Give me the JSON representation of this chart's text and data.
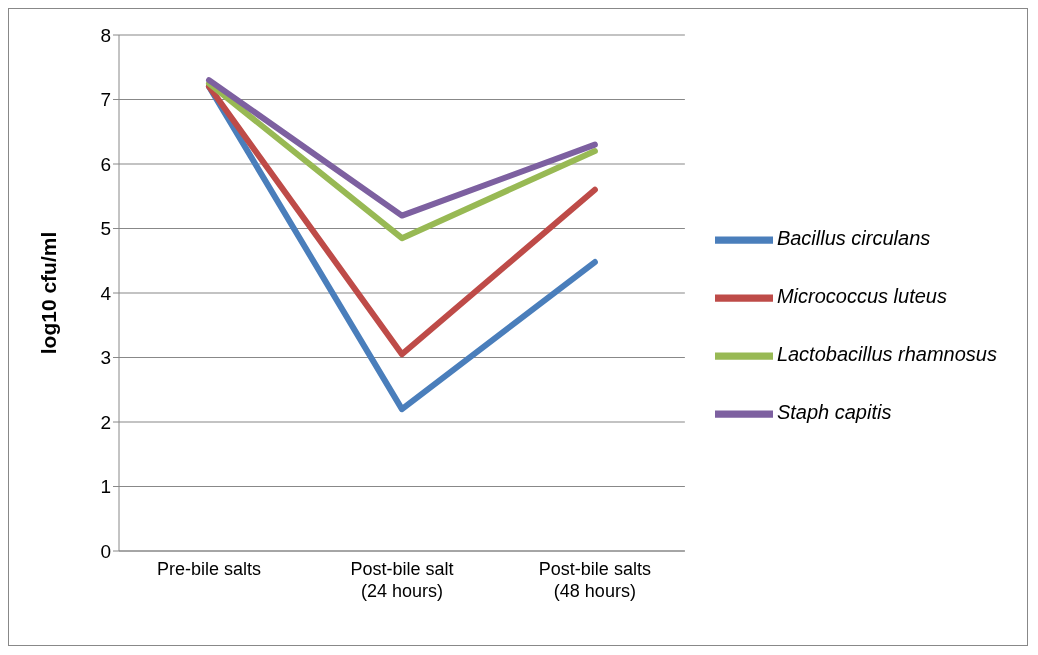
{
  "chart_data": {
    "type": "line",
    "ylabel": "log10 cfu/ml",
    "categories": [
      "Pre-bile salts",
      "Post-bile salt (24 hours)",
      "Post-bile salts (48 hours)"
    ],
    "series": [
      {
        "name": "Bacillus circulans",
        "color": "#4a7ebb",
        "values": [
          7.2,
          2.2,
          4.48
        ]
      },
      {
        "name": "Micrococcus luteus",
        "color": "#be4b48",
        "values": [
          7.2,
          3.05,
          5.6
        ]
      },
      {
        "name": "Lactobacillus rhamnosus",
        "color": "#98b954",
        "values": [
          7.25,
          4.85,
          6.2
        ]
      },
      {
        "name": "Staph capitis",
        "color": "#7d60a0",
        "values": [
          7.3,
          5.2,
          6.3
        ]
      }
    ],
    "ylim": [
      0,
      8
    ],
    "yticks": [
      0,
      1,
      2,
      3,
      4,
      5,
      6,
      7,
      8
    ],
    "grid": "y",
    "legend": "right",
    "marker": "none",
    "line_style": "solid"
  }
}
